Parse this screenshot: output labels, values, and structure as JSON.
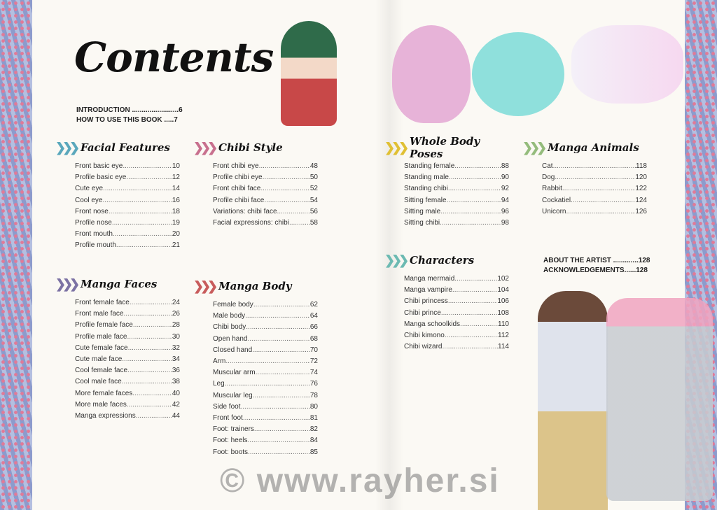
{
  "title": "Contents",
  "front_matter": [
    {
      "label": "INTRODUCTION",
      "page": "6"
    },
    {
      "label": "HOW TO USE THIS BOOK",
      "page": "7"
    }
  ],
  "back_matter": [
    {
      "label": "ABOUT THE ARTIST",
      "page": "128"
    },
    {
      "label": "ACKNOWLEDGEMENTS",
      "page": "128"
    }
  ],
  "sections": [
    {
      "title": "Facial Features",
      "color": "#5aa8bc",
      "entries": [
        [
          "Front basic eye",
          "10"
        ],
        [
          "Profile basic eye",
          "12"
        ],
        [
          "Cute eye",
          "14"
        ],
        [
          "Cool eye",
          "16"
        ],
        [
          "Front nose",
          "18"
        ],
        [
          "Profile nose",
          "19"
        ],
        [
          "Front mouth",
          "20"
        ],
        [
          "Profile mouth",
          "21"
        ]
      ]
    },
    {
      "title": "Chibi Style",
      "color": "#c8708e",
      "entries": [
        [
          "Front chibi eye",
          "48"
        ],
        [
          "Profile chibi eye",
          "50"
        ],
        [
          "Front chibi face",
          "52"
        ],
        [
          "Profile chibi face",
          "54"
        ],
        [
          "Variations: chibi face",
          "56"
        ],
        [
          "Facial expressions: chibi",
          "58"
        ]
      ]
    },
    {
      "title": "Manga Faces",
      "color": "#7c72a4",
      "entries": [
        [
          "Front female face",
          "24"
        ],
        [
          "Front male face",
          "26"
        ],
        [
          "Profile female face",
          "28"
        ],
        [
          "Profile male face",
          "30"
        ],
        [
          "Cute female face",
          "32"
        ],
        [
          "Cute male face",
          "34"
        ],
        [
          "Cool female face",
          "36"
        ],
        [
          "Cool male face",
          "38"
        ],
        [
          "More female faces",
          "40"
        ],
        [
          "More male faces",
          "42"
        ],
        [
          "Manga expressions",
          "44"
        ]
      ]
    },
    {
      "title": "Manga Body",
      "color": "#c85c5c",
      "entries": [
        [
          "Female body",
          "62"
        ],
        [
          "Male body",
          "64"
        ],
        [
          "Chibi body",
          "66"
        ],
        [
          "Open hand",
          "68"
        ],
        [
          "Closed hand",
          "70"
        ],
        [
          "Arm",
          "72"
        ],
        [
          "Muscular arm",
          "74"
        ],
        [
          "Leg",
          "76"
        ],
        [
          "Muscular leg",
          "78"
        ],
        [
          "Side foot",
          "80"
        ],
        [
          "Front foot",
          "81"
        ],
        [
          "Foot: trainers",
          "82"
        ],
        [
          "Foot: heels",
          "84"
        ],
        [
          "Foot: boots",
          "85"
        ]
      ]
    },
    {
      "title": "Whole Body Poses",
      "color": "#e0c034",
      "entries": [
        [
          "Standing female",
          "88"
        ],
        [
          "Standing male",
          "90"
        ],
        [
          "Standing chibi",
          "92"
        ],
        [
          "Sitting female",
          "94"
        ],
        [
          "Sitting male",
          "96"
        ],
        [
          "Sitting chibi",
          "98"
        ]
      ]
    },
    {
      "title": "Manga Animals",
      "color": "#94bc7c",
      "entries": [
        [
          "Cat",
          "118"
        ],
        [
          "Dog",
          "120"
        ],
        [
          "Rabbit",
          "122"
        ],
        [
          "Cockatiel",
          "124"
        ],
        [
          "Unicorn",
          "126"
        ]
      ]
    },
    {
      "title": "Characters",
      "color": "#6cbab2",
      "entries": [
        [
          "Manga mermaid",
          "102"
        ],
        [
          "Manga vampire",
          "104"
        ],
        [
          "Chibi princess",
          "106"
        ],
        [
          "Chibi prince",
          "108"
        ],
        [
          "Manga schoolkids",
          "110"
        ],
        [
          "Chibi kimono",
          "112"
        ],
        [
          "Chibi wizard",
          "114"
        ]
      ]
    }
  ],
  "watermark": "© www.rayher.si"
}
